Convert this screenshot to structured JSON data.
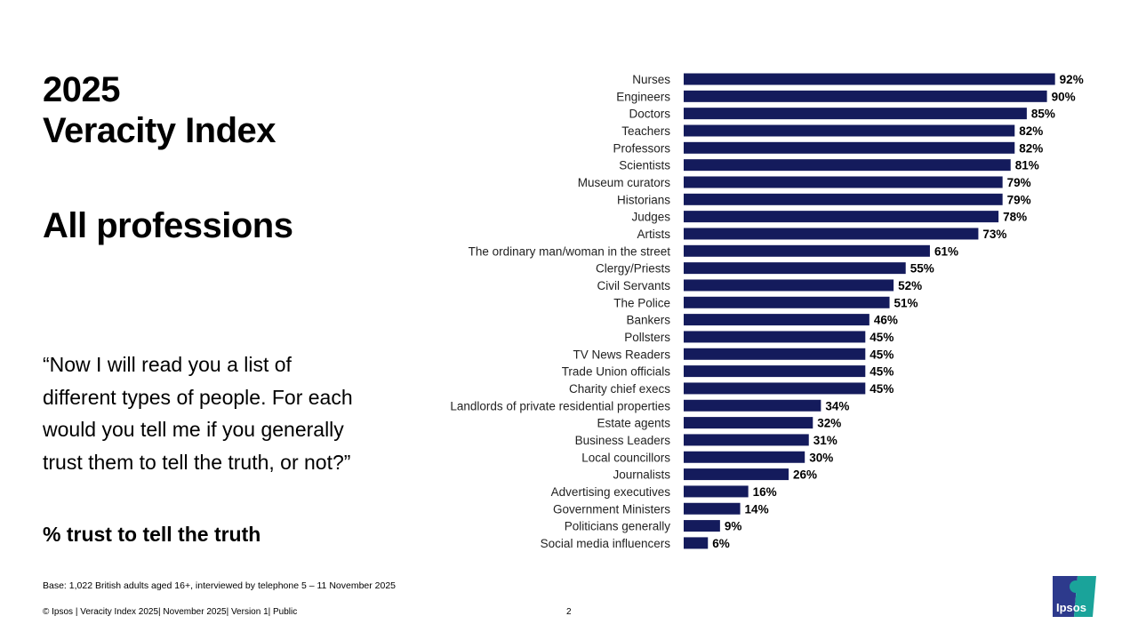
{
  "title_line1": "2025",
  "title_line2": "Veracity Index",
  "subtitle": "All professions",
  "question": "“Now I will read you a list of different types of people. For each would you tell me if you generally trust them to tell the truth, or not?”",
  "measure": "% trust to tell the truth",
  "base": "Base: 1,022 British adults aged 16+, interviewed by telephone 5 – 11 November 2025",
  "footer": "© Ipsos | Veracity Index 2025| November 2025| Version 1| Public",
  "page_number": "2",
  "logo_text": "Ipsos",
  "colors": {
    "bar": "#141b5c",
    "logo_left": "#2d3a8c",
    "logo_right": "#1aa39a"
  },
  "chart_data": {
    "type": "bar",
    "orientation": "horizontal",
    "categories": [
      "Nurses",
      "Engineers",
      "Doctors",
      "Teachers",
      "Professors",
      "Scientists",
      "Museum curators",
      "Historians",
      "Judges",
      "Artists",
      "The ordinary man/woman in the street",
      "Clergy/Priests",
      "Civil Servants",
      "The Police",
      "Bankers",
      "Pollsters",
      "TV News Readers",
      "Trade Union officials",
      "Charity chief execs",
      "Landlords of private residential properties",
      "Estate agents",
      "Business Leaders",
      "Local councillors",
      "Journalists",
      "Advertising executives",
      "Government Ministers",
      "Politicians generally",
      "Social media influencers"
    ],
    "values": [
      92,
      90,
      85,
      82,
      82,
      81,
      79,
      79,
      78,
      73,
      61,
      55,
      52,
      51,
      46,
      45,
      45,
      45,
      45,
      34,
      32,
      31,
      30,
      26,
      16,
      14,
      9,
      6
    ],
    "value_suffix": "%",
    "xlim": [
      0,
      100
    ],
    "grid": false
  }
}
